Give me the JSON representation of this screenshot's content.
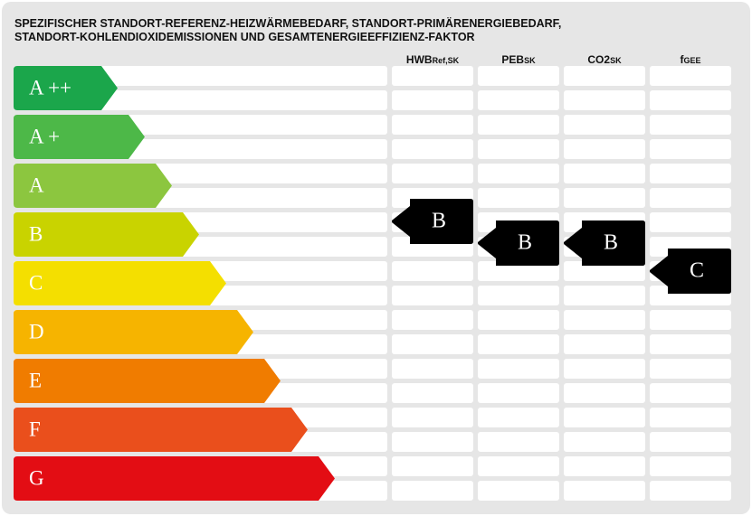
{
  "title": [
    "SPEZIFISCHER STANDORT-REFERENZ-HEIZWÄRMEBEDARF, STANDORT-PRIMÄRENERGIEBEDARF,",
    "STANDORT-KOHLENDIOXIDEMISSIONEN UND GESAMTENERGIEEFFIZIENZ-FAKTOR"
  ],
  "classes": [
    {
      "label": "A ++",
      "color": "#1ba64b"
    },
    {
      "label": "A +",
      "color": "#4db848"
    },
    {
      "label": "A",
      "color": "#8cc63f"
    },
    {
      "label": "B",
      "color": "#c9d300"
    },
    {
      "label": "C",
      "color": "#f4df00"
    },
    {
      "label": "D",
      "color": "#f6b400"
    },
    {
      "label": "E",
      "color": "#f07c00"
    },
    {
      "label": "F",
      "color": "#ea4f1c"
    },
    {
      "label": "G",
      "color": "#e30d14"
    }
  ],
  "columns": [
    {
      "header": {
        "main": "HWB",
        "sub": "Ref,SK"
      },
      "rating": "B"
    },
    {
      "header": {
        "main": "PEB",
        "sub": "SK"
      },
      "rating": "B"
    },
    {
      "header": {
        "main": "CO2",
        "sub": "SK"
      },
      "rating": "B"
    },
    {
      "header": {
        "main": "f",
        "sub": "GEE"
      },
      "rating": "C"
    }
  ]
}
